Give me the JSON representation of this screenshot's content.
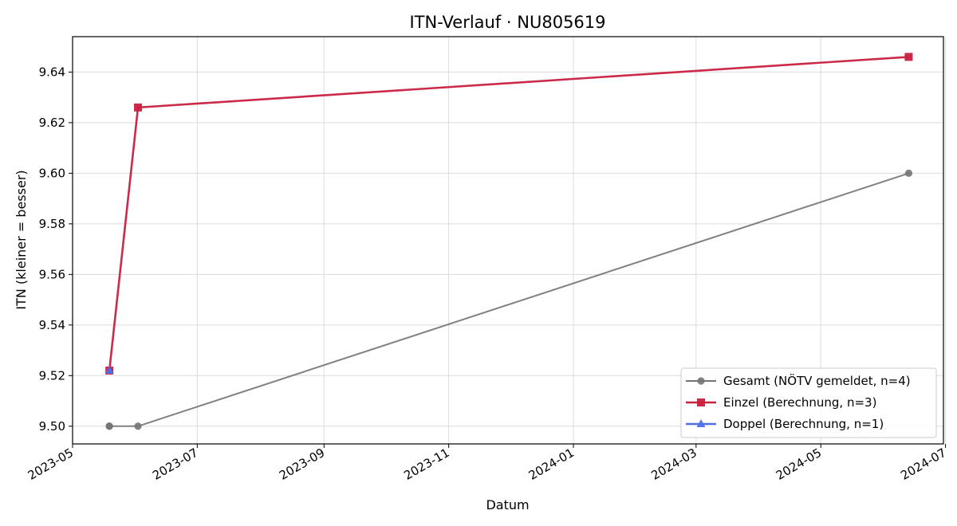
{
  "chart_data": {
    "type": "line",
    "title": "ITN-Verlauf · NU805619",
    "xlabel": "Datum",
    "ylabel": "ITN  (kleiner = besser)",
    "x_type": "date",
    "xlim": [
      "2023-05-01",
      "2024-06-30"
    ],
    "ylim": [
      9.493,
      9.654
    ],
    "x_ticks": [
      "2023-05",
      "2023-07",
      "2023-09",
      "2023-11",
      "2024-01",
      "2024-03",
      "2024-05",
      "2024-07"
    ],
    "y_ticks": [
      "9.50",
      "9.52",
      "9.54",
      "9.56",
      "9.58",
      "9.60",
      "9.62",
      "9.64"
    ],
    "grid": true,
    "legend_position": "lower-right",
    "series": [
      {
        "name": "Gesamt (NÖTV gemeldet, n=4)",
        "color": "#737373",
        "marker": "circle",
        "points": [
          {
            "x": "2023-05-19",
            "y": 9.5
          },
          {
            "x": "2023-05-19",
            "y": 9.5
          },
          {
            "x": "2023-06-02",
            "y": 9.5
          },
          {
            "x": "2024-06-13",
            "y": 9.6
          }
        ]
      },
      {
        "name": "Einzel (Berechnung, n=3)",
        "color": "#c8203f",
        "marker": "square",
        "points": [
          {
            "x": "2023-05-19",
            "y": 9.522
          },
          {
            "x": "2023-06-02",
            "y": 9.626
          },
          {
            "x": "2024-06-13",
            "y": 9.646
          }
        ]
      },
      {
        "name": "Doppel (Berechnung, n=1)",
        "color": "#4f6fe8",
        "marker": "triangle",
        "points": [
          {
            "x": "2023-05-19",
            "y": 9.522
          }
        ]
      }
    ]
  }
}
